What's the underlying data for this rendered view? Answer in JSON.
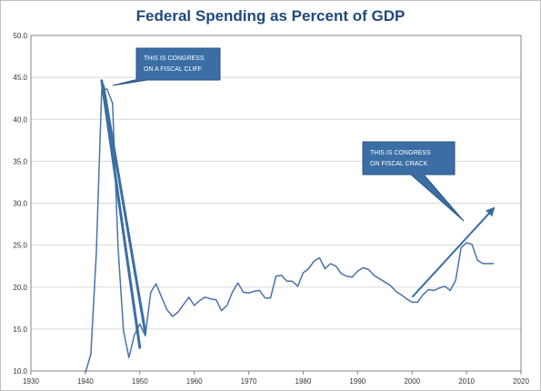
{
  "colors": {
    "title": "#1f497d",
    "series": "#4a72ab",
    "callout": "#3a6ea5",
    "grid": "#d9d9d9",
    "axis": "#868686"
  },
  "chart_data": {
    "type": "line",
    "title": "Federal Spending as Percent of GDP",
    "xlabel": "",
    "ylabel": "",
    "xlim": [
      1930,
      2020
    ],
    "ylim": [
      10.0,
      50.0
    ],
    "x_ticks": [
      "1930",
      "1940",
      "1950",
      "1960",
      "1970",
      "1980",
      "1990",
      "2000",
      "2010",
      "2020"
    ],
    "y_ticks": [
      "10.0",
      "15.0",
      "20.0",
      "25.0",
      "30.0",
      "35.0",
      "40.0",
      "45.0",
      "50.0"
    ],
    "grid": "horizontal",
    "legend": "none",
    "series": [
      {
        "x": [
          1940,
          1941,
          1942,
          1943,
          1944,
          1945,
          1946,
          1947,
          1948,
          1949,
          1950,
          1951,
          1952,
          1953,
          1954,
          1955,
          1956,
          1957,
          1958,
          1959,
          1960,
          1961,
          1962,
          1963,
          1964,
          1965,
          1966,
          1967,
          1968,
          1969,
          1970,
          1971,
          1972,
          1973,
          1974,
          1975,
          1976,
          1977,
          1978,
          1979,
          1980,
          1981,
          1982,
          1983,
          1984,
          1985,
          1986,
          1987,
          1988,
          1989,
          1990,
          1991,
          1992,
          1993,
          1994,
          1995,
          1996,
          1997,
          1998,
          1999,
          2000,
          2001,
          2002,
          2003,
          2004,
          2005,
          2006,
          2007,
          2008,
          2009,
          2010,
          2011,
          2012,
          2013,
          2014,
          2015
        ],
        "y": [
          9.8,
          12.0,
          24.0,
          43.6,
          43.6,
          41.9,
          24.8,
          14.8,
          11.6,
          14.3,
          15.6,
          14.2,
          19.4,
          20.4,
          18.8,
          17.3,
          16.5,
          17.0,
          17.9,
          18.8,
          17.8,
          18.4,
          18.8,
          18.6,
          18.5,
          17.2,
          17.8,
          19.4,
          20.5,
          19.4,
          19.3,
          19.5,
          19.6,
          18.7,
          18.7,
          21.3,
          21.4,
          20.7,
          20.7,
          20.1,
          21.7,
          22.2,
          23.1,
          23.5,
          22.2,
          22.8,
          22.5,
          21.6,
          21.3,
          21.2,
          21.9,
          22.3,
          22.1,
          21.4,
          21.0,
          20.6,
          20.2,
          19.5,
          19.1,
          18.6,
          18.2,
          18.2,
          19.1,
          19.7,
          19.6,
          19.9,
          20.1,
          19.6,
          20.8,
          24.7,
          25.3,
          25.1,
          23.2,
          22.8,
          22.8,
          22.8
        ]
      }
    ],
    "annotations": [
      {
        "lines": [
          "THIS IS CONGRESS",
          "ON A FISCAL CLIFF"
        ],
        "arrow_path_x": [
          1943,
          1950
        ],
        "arrow_path_y": [
          44.6,
          12.8
        ],
        "arrow_path_x2": [
          1943.3,
          1951
        ],
        "arrow_path_y2": [
          44.0,
          14.6
        ]
      },
      {
        "lines": [
          "THIS  IS CONGRESS",
          "ON FISCAL CRACK"
        ],
        "arrow_x": [
          2000,
          2015
        ],
        "arrow_y": [
          18.8,
          29.4
        ]
      }
    ]
  }
}
